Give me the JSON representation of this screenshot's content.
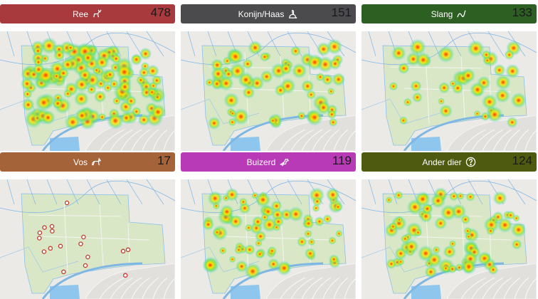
{
  "panels": [
    {
      "label": "Ree",
      "count": "478",
      "color": "#a83a3d",
      "icon": "deer-icon",
      "spots": 120,
      "density": "high"
    },
    {
      "label": "Konijn/Haas",
      "count": "151",
      "color": "#4b4b4d",
      "icon": "rabbit-icon",
      "spots": 60,
      "density": "medium"
    },
    {
      "label": "Slang",
      "count": "133",
      "color": "#2e5f22",
      "icon": "snake-icon",
      "spots": 40,
      "density": "medium"
    },
    {
      "label": "Vos",
      "count": "17",
      "color": "#a5633a",
      "icon": "fox-icon",
      "spots": 17,
      "density": "points"
    },
    {
      "label": "Buizerd",
      "count": "119",
      "color": "#b93ab7",
      "icon": "bird-icon",
      "spots": 70,
      "density": "medium"
    },
    {
      "label": "Ander dier",
      "count": "124",
      "color": "#4f5a11",
      "icon": "question-icon",
      "spots": 70,
      "density": "medium"
    }
  ]
}
